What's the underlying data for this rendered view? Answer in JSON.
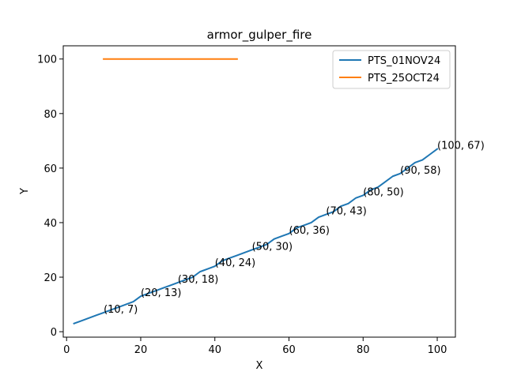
{
  "chart_data": {
    "type": "line",
    "title": "armor_gulper_fire",
    "xlabel": "X",
    "ylabel": "Y",
    "xlim": [
      -0.9,
      104.9
    ],
    "ylim": [
      -2.0,
      104.85
    ],
    "xticks": [
      0,
      20,
      40,
      60,
      80,
      100
    ],
    "yticks": [
      0,
      20,
      40,
      60,
      80,
      100
    ],
    "grid": false,
    "legend_position": "top-right",
    "series": [
      {
        "name": "PTS_01NOV24",
        "color": "#1f77b4",
        "x": [
          2,
          4,
          6,
          8,
          10,
          12,
          14,
          16,
          18,
          20,
          22,
          24,
          26,
          28,
          30,
          32,
          34,
          36,
          38,
          40,
          42,
          44,
          46,
          48,
          50,
          52,
          54,
          56,
          58,
          60,
          62,
          64,
          66,
          68,
          70,
          72,
          74,
          76,
          78,
          80,
          82,
          84,
          86,
          88,
          90,
          92,
          94,
          96,
          98,
          100
        ],
        "y": [
          3,
          4,
          5,
          6,
          7,
          8,
          9,
          10,
          11,
          13,
          14,
          15,
          16,
          17,
          18,
          19,
          20,
          22,
          23,
          24,
          26,
          27,
          28,
          29,
          30,
          31,
          32,
          34,
          35,
          36,
          38,
          39,
          40,
          42,
          43,
          44,
          46,
          47,
          49,
          50,
          52,
          53,
          55,
          57,
          58,
          60,
          62,
          63,
          65,
          67
        ]
      },
      {
        "name": "PTS_25OCT24",
        "color": "#ff7f0e",
        "x": [
          10,
          46
        ],
        "y": [
          100,
          100
        ]
      }
    ],
    "annotations": [
      {
        "x": 10,
        "y": 7,
        "text": "(10, 7)"
      },
      {
        "x": 20,
        "y": 13,
        "text": "(20, 13)"
      },
      {
        "x": 30,
        "y": 18,
        "text": "(30, 18)"
      },
      {
        "x": 40,
        "y": 24,
        "text": "(40, 24)"
      },
      {
        "x": 50,
        "y": 30,
        "text": "(50, 30)"
      },
      {
        "x": 60,
        "y": 36,
        "text": "(60, 36)"
      },
      {
        "x": 70,
        "y": 43,
        "text": "(70, 43)"
      },
      {
        "x": 80,
        "y": 50,
        "text": "(80, 50)"
      },
      {
        "x": 90,
        "y": 58,
        "text": "(90, 58)"
      },
      {
        "x": 100,
        "y": 67,
        "text": "(100, 67)"
      }
    ]
  }
}
